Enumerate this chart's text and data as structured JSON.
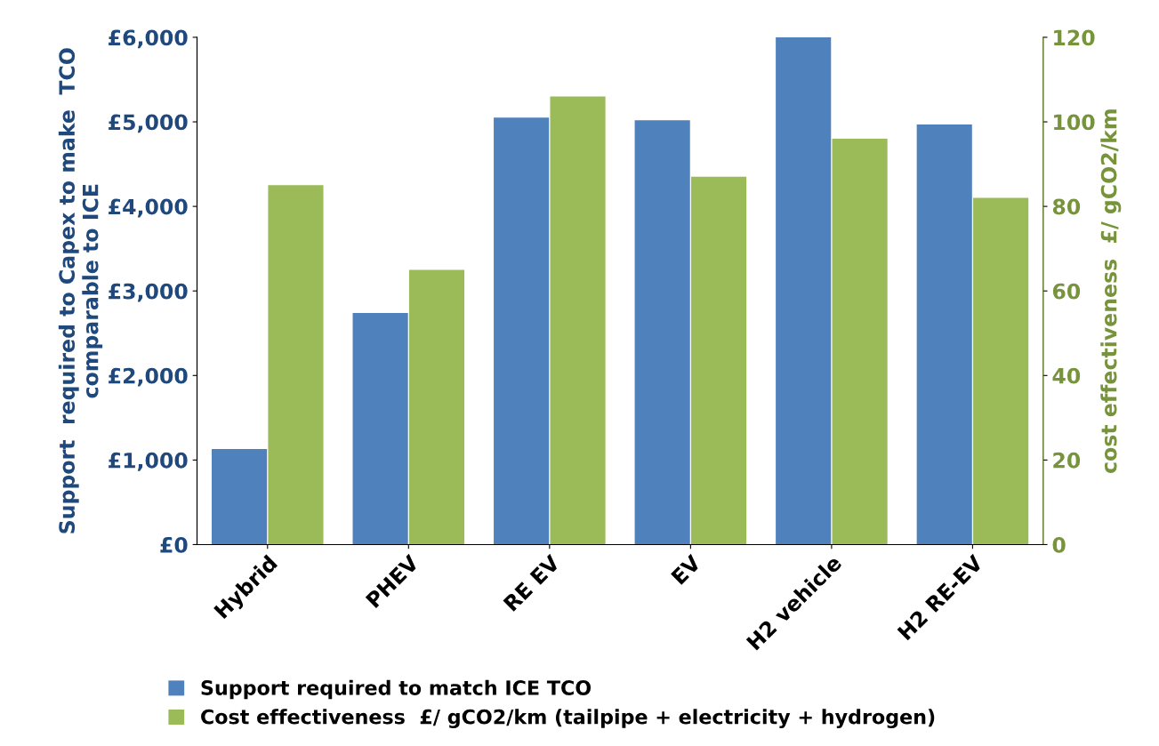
{
  "chart_data": {
    "type": "bar",
    "categories": [
      "Hybrid",
      "PHEV",
      "RE EV",
      "EV",
      "H2 vehicle",
      "H2 RE-EV"
    ],
    "ylabel": "Support  required to Capex to make  TCO comparable to ICE",
    "y2label": "cost effectiveness  £/ gCO2/km",
    "ylim": [
      0,
      6000
    ],
    "yticks": [
      {
        "value": 0,
        "label": "£0"
      },
      {
        "value": 1000,
        "label": "£1,000"
      },
      {
        "value": 2000,
        "label": "£2,000"
      },
      {
        "value": 3000,
        "label": "£3,000"
      },
      {
        "value": 4000,
        "label": "£4,000"
      },
      {
        "value": 5000,
        "label": "£5,000"
      },
      {
        "value": 6000,
        "label": "£6,000"
      }
    ],
    "y2lim": [
      0,
      120
    ],
    "y2ticks": [
      0,
      20,
      40,
      60,
      80,
      100,
      120
    ],
    "series": [
      {
        "name": "Support required to match ICE TCO",
        "color": "#4f81bd",
        "values": [
          1130,
          2740,
          5050,
          5020,
          6000,
          4970
        ]
      },
      {
        "name": "Cost effectiveness  £/ gCO2/km (tailpipe + electricity + hydrogen)",
        "color": "#9bbb59",
        "axis": "y2",
        "values": [
          85,
          65,
          106,
          87,
          96,
          82
        ]
      }
    ],
    "grid": false,
    "legend": "bottom"
  }
}
